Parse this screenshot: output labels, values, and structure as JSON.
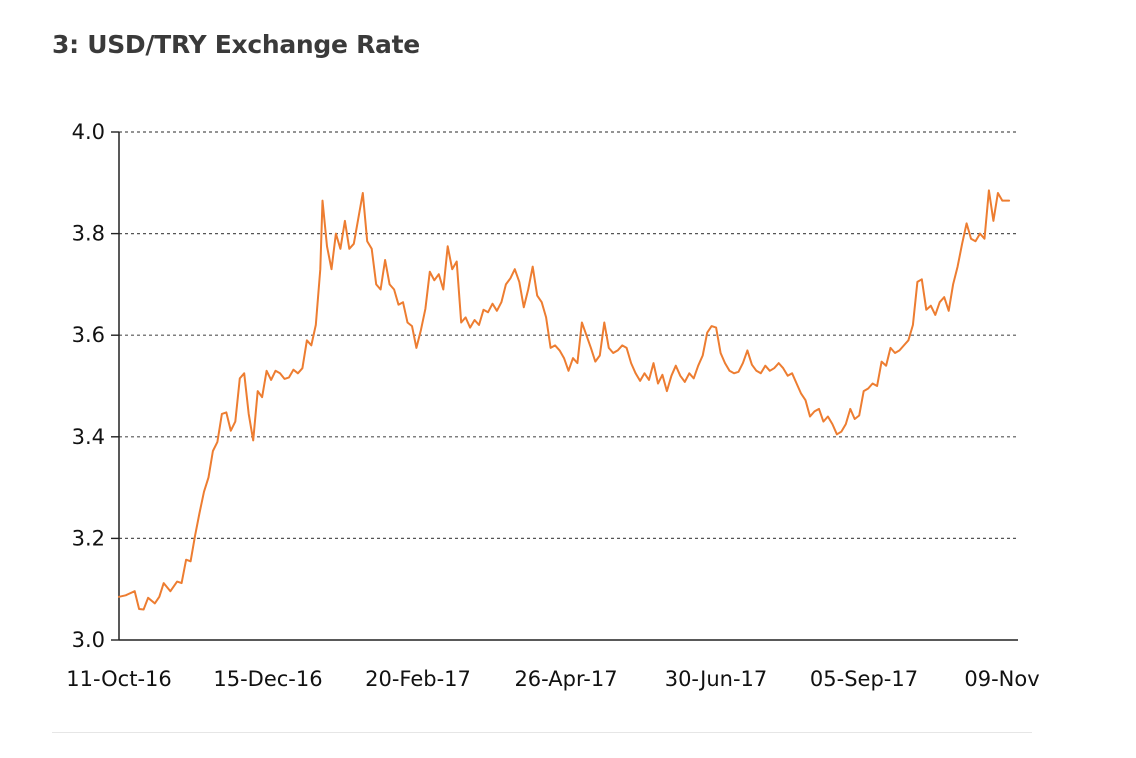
{
  "title": "3: USD/TRY Exchange Rate",
  "chart_data": {
    "type": "line",
    "title": "3: USD/TRY Exchange Rate",
    "xlabel": "",
    "ylabel": "",
    "x_ticks": [
      "11-Oct-16",
      "15-Dec-16",
      "20-Feb-17",
      "26-Apr-17",
      "30-Jun-17",
      "05-Sep-17",
      "09-Nov"
    ],
    "y_ticks": [
      "3.0",
      "3.2",
      "3.4",
      "3.6",
      "3.8",
      "4.0"
    ],
    "ylim": [
      3.0,
      4.0
    ],
    "grid": "horizontal dotted",
    "series_color": "#ed7d31",
    "series": [
      {
        "points": [
          [
            "2016-10-11",
            3.085
          ],
          [
            "2016-10-14",
            3.088
          ],
          [
            "2016-10-18",
            3.096
          ],
          [
            "2016-10-20",
            3.061
          ],
          [
            "2016-10-22",
            3.06
          ],
          [
            "2016-10-24",
            3.083
          ],
          [
            "2016-10-27",
            3.072
          ],
          [
            "2016-10-29",
            3.085
          ],
          [
            "2016-10-31",
            3.112
          ],
          [
            "2016-11-03",
            3.096
          ],
          [
            "2016-11-06",
            3.115
          ],
          [
            "2016-11-08",
            3.112
          ],
          [
            "2016-11-10",
            3.158
          ],
          [
            "2016-11-12",
            3.155
          ],
          [
            "2016-11-14",
            3.205
          ],
          [
            "2016-11-16",
            3.25
          ],
          [
            "2016-11-18",
            3.292
          ],
          [
            "2016-11-20",
            3.32
          ],
          [
            "2016-11-22",
            3.372
          ],
          [
            "2016-11-24",
            3.39
          ],
          [
            "2016-11-26",
            3.445
          ],
          [
            "2016-11-28",
            3.448
          ],
          [
            "2016-11-30",
            3.412
          ],
          [
            "2016-12-02",
            3.43
          ],
          [
            "2016-12-04",
            3.515
          ],
          [
            "2016-12-06",
            3.525
          ],
          [
            "2016-12-08",
            3.445
          ],
          [
            "2016-12-10",
            3.393
          ],
          [
            "2016-12-12",
            3.49
          ],
          [
            "2016-12-14",
            3.478
          ],
          [
            "2016-12-16",
            3.53
          ],
          [
            "2016-12-18",
            3.512
          ],
          [
            "2016-12-20",
            3.53
          ],
          [
            "2016-12-22",
            3.525
          ],
          [
            "2016-12-24",
            3.514
          ],
          [
            "2016-12-26",
            3.517
          ],
          [
            "2016-12-28",
            3.532
          ],
          [
            "2016-12-30",
            3.525
          ],
          [
            "2017-01-01",
            3.535
          ],
          [
            "2017-01-03",
            3.59
          ],
          [
            "2017-01-05",
            3.58
          ],
          [
            "2017-01-07",
            3.62
          ],
          [
            "2017-01-09",
            3.73
          ],
          [
            "2017-01-10",
            3.865
          ],
          [
            "2017-01-12",
            3.775
          ],
          [
            "2017-01-14",
            3.73
          ],
          [
            "2017-01-16",
            3.8
          ],
          [
            "2017-01-18",
            3.77
          ],
          [
            "2017-01-20",
            3.825
          ],
          [
            "2017-01-22",
            3.77
          ],
          [
            "2017-01-24",
            3.78
          ],
          [
            "2017-01-26",
            3.83
          ],
          [
            "2017-01-28",
            3.88
          ],
          [
            "2017-01-30",
            3.785
          ],
          [
            "2017-02-01",
            3.77
          ],
          [
            "2017-02-03",
            3.7
          ],
          [
            "2017-02-05",
            3.69
          ],
          [
            "2017-02-07",
            3.748
          ],
          [
            "2017-02-09",
            3.7
          ],
          [
            "2017-02-11",
            3.69
          ],
          [
            "2017-02-13",
            3.66
          ],
          [
            "2017-02-15",
            3.665
          ],
          [
            "2017-02-17",
            3.625
          ],
          [
            "2017-02-19",
            3.618
          ],
          [
            "2017-02-21",
            3.575
          ],
          [
            "2017-02-23",
            3.61
          ],
          [
            "2017-02-25",
            3.652
          ],
          [
            "2017-02-27",
            3.725
          ],
          [
            "2017-03-01",
            3.708
          ],
          [
            "2017-03-03",
            3.72
          ],
          [
            "2017-03-05",
            3.69
          ],
          [
            "2017-03-07",
            3.775
          ],
          [
            "2017-03-09",
            3.73
          ],
          [
            "2017-03-11",
            3.745
          ],
          [
            "2017-03-13",
            3.625
          ],
          [
            "2017-03-15",
            3.635
          ],
          [
            "2017-03-17",
            3.615
          ],
          [
            "2017-03-19",
            3.63
          ],
          [
            "2017-03-21",
            3.62
          ],
          [
            "2017-03-23",
            3.65
          ],
          [
            "2017-03-25",
            3.645
          ],
          [
            "2017-03-27",
            3.662
          ],
          [
            "2017-03-29",
            3.648
          ],
          [
            "2017-03-31",
            3.665
          ],
          [
            "2017-04-02",
            3.7
          ],
          [
            "2017-04-04",
            3.712
          ],
          [
            "2017-04-06",
            3.73
          ],
          [
            "2017-04-08",
            3.705
          ],
          [
            "2017-04-10",
            3.655
          ],
          [
            "2017-04-12",
            3.69
          ],
          [
            "2017-04-14",
            3.735
          ],
          [
            "2017-04-16",
            3.678
          ],
          [
            "2017-04-18",
            3.665
          ],
          [
            "2017-04-20",
            3.635
          ],
          [
            "2017-04-22",
            3.575
          ],
          [
            "2017-04-24",
            3.58
          ],
          [
            "2017-04-26",
            3.57
          ],
          [
            "2017-04-28",
            3.555
          ],
          [
            "2017-04-30",
            3.53
          ],
          [
            "2017-05-02",
            3.555
          ],
          [
            "2017-05-04",
            3.545
          ],
          [
            "2017-05-06",
            3.625
          ],
          [
            "2017-05-08",
            3.6
          ],
          [
            "2017-05-10",
            3.575
          ],
          [
            "2017-05-12",
            3.548
          ],
          [
            "2017-05-14",
            3.56
          ],
          [
            "2017-05-16",
            3.625
          ],
          [
            "2017-05-18",
            3.575
          ],
          [
            "2017-05-20",
            3.565
          ],
          [
            "2017-05-22",
            3.57
          ],
          [
            "2017-05-24",
            3.58
          ],
          [
            "2017-05-26",
            3.575
          ],
          [
            "2017-05-28",
            3.545
          ],
          [
            "2017-05-30",
            3.525
          ],
          [
            "2017-06-01",
            3.51
          ],
          [
            "2017-06-03",
            3.525
          ],
          [
            "2017-06-05",
            3.512
          ],
          [
            "2017-06-07",
            3.545
          ],
          [
            "2017-06-09",
            3.505
          ],
          [
            "2017-06-11",
            3.522
          ],
          [
            "2017-06-13",
            3.49
          ],
          [
            "2017-06-15",
            3.52
          ],
          [
            "2017-06-17",
            3.54
          ],
          [
            "2017-06-19",
            3.52
          ],
          [
            "2017-06-21",
            3.508
          ],
          [
            "2017-06-23",
            3.525
          ],
          [
            "2017-06-25",
            3.515
          ],
          [
            "2017-06-27",
            3.54
          ],
          [
            "2017-06-29",
            3.56
          ],
          [
            "2017-07-01",
            3.605
          ],
          [
            "2017-07-03",
            3.618
          ],
          [
            "2017-07-05",
            3.615
          ],
          [
            "2017-07-07",
            3.565
          ],
          [
            "2017-07-09",
            3.545
          ],
          [
            "2017-07-11",
            3.53
          ],
          [
            "2017-07-13",
            3.525
          ],
          [
            "2017-07-15",
            3.528
          ],
          [
            "2017-07-17",
            3.545
          ],
          [
            "2017-07-19",
            3.57
          ],
          [
            "2017-07-21",
            3.542
          ],
          [
            "2017-07-23",
            3.53
          ],
          [
            "2017-07-25",
            3.525
          ],
          [
            "2017-07-27",
            3.54
          ],
          [
            "2017-07-29",
            3.53
          ],
          [
            "2017-07-31",
            3.535
          ],
          [
            "2017-08-02",
            3.545
          ],
          [
            "2017-08-04",
            3.535
          ],
          [
            "2017-08-06",
            3.52
          ],
          [
            "2017-08-08",
            3.525
          ],
          [
            "2017-08-10",
            3.505
          ],
          [
            "2017-08-12",
            3.485
          ],
          [
            "2017-08-14",
            3.472
          ],
          [
            "2017-08-16",
            3.44
          ],
          [
            "2017-08-18",
            3.45
          ],
          [
            "2017-08-20",
            3.455
          ],
          [
            "2017-08-22",
            3.43
          ],
          [
            "2017-08-24",
            3.44
          ],
          [
            "2017-08-26",
            3.425
          ],
          [
            "2017-08-28",
            3.405
          ],
          [
            "2017-08-30",
            3.41
          ],
          [
            "2017-09-01",
            3.425
          ],
          [
            "2017-09-03",
            3.455
          ],
          [
            "2017-09-05",
            3.435
          ],
          [
            "2017-09-07",
            3.442
          ],
          [
            "2017-09-09",
            3.49
          ],
          [
            "2017-09-11",
            3.495
          ],
          [
            "2017-09-13",
            3.505
          ],
          [
            "2017-09-15",
            3.5
          ],
          [
            "2017-09-17",
            3.548
          ],
          [
            "2017-09-19",
            3.54
          ],
          [
            "2017-09-21",
            3.575
          ],
          [
            "2017-09-23",
            3.565
          ],
          [
            "2017-09-25",
            3.57
          ],
          [
            "2017-09-27",
            3.58
          ],
          [
            "2017-09-29",
            3.59
          ],
          [
            "2017-10-01",
            3.62
          ],
          [
            "2017-10-03",
            3.705
          ],
          [
            "2017-10-05",
            3.71
          ],
          [
            "2017-10-07",
            3.65
          ],
          [
            "2017-10-09",
            3.658
          ],
          [
            "2017-10-11",
            3.64
          ],
          [
            "2017-10-13",
            3.665
          ],
          [
            "2017-10-15",
            3.675
          ],
          [
            "2017-10-17",
            3.648
          ],
          [
            "2017-10-19",
            3.7
          ],
          [
            "2017-10-21",
            3.735
          ],
          [
            "2017-10-23",
            3.78
          ],
          [
            "2017-10-25",
            3.82
          ],
          [
            "2017-10-27",
            3.79
          ],
          [
            "2017-10-29",
            3.785
          ],
          [
            "2017-10-31",
            3.8
          ],
          [
            "2017-11-02",
            3.79
          ],
          [
            "2017-11-04",
            3.885
          ],
          [
            "2017-11-06",
            3.825
          ],
          [
            "2017-11-08",
            3.88
          ],
          [
            "2017-11-10",
            3.865
          ],
          [
            "2017-11-13",
            3.865
          ]
        ]
      }
    ]
  }
}
